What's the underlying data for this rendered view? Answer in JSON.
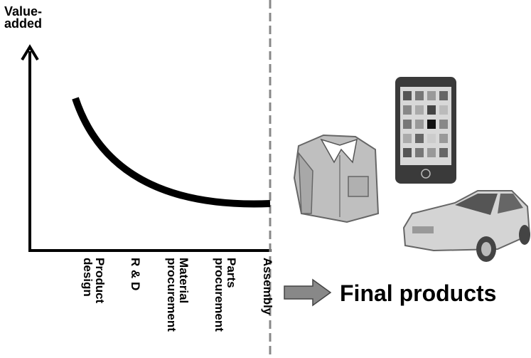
{
  "axis": {
    "y_label_lines": [
      "Value-",
      "added"
    ]
  },
  "stages": [
    {
      "lines": [
        "Product",
        "design"
      ]
    },
    {
      "lines": [
        "R & D"
      ]
    },
    {
      "lines": [
        "Material",
        "procurement"
      ]
    },
    {
      "lines": [
        "Parts",
        "procurement"
      ]
    },
    {
      "lines": [
        "Assembly"
      ]
    }
  ],
  "output": {
    "label": "Final products"
  }
}
